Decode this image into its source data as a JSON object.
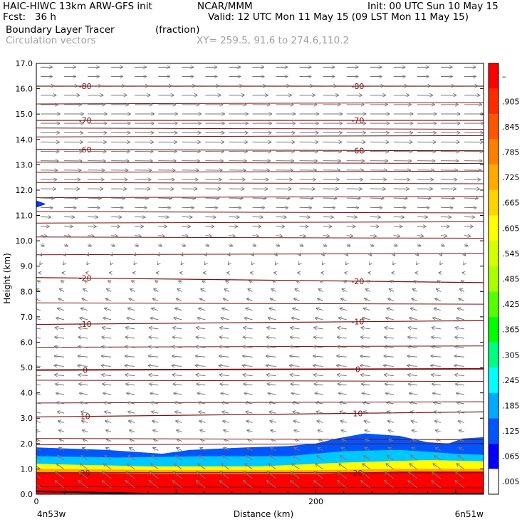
{
  "header": {
    "line1_left": "HAIC-HIWC 13km ARW-GFS init",
    "line1_mid": "NCAR/MMM",
    "line1_right": "Init: 00 UTC Sun 10 May 15",
    "line2_left": "Fcst:   36 h",
    "line2_right": "Valid: 12 UTC Mon 11 May 15 (09 LST Mon 11 May 15)",
    "line3_left": "Boundary Layer Tracer",
    "line3_mid": "(fraction)",
    "line4_left": "Circulation vectors",
    "line4_mid": "XY= 259.5, 91.6 to 274.6,110.2"
  },
  "chart_data": {
    "type": "heatmap",
    "title": "Boundary Layer Tracer",
    "units": "(fraction)",
    "xlabel": "Distance (km)",
    "ylabel": "Height (km)",
    "xlim": [
      0,
      320
    ],
    "ylim": [
      0,
      17
    ],
    "x_ticks": [
      {
        "value": 0,
        "label": "0"
      },
      {
        "value": 200,
        "label": "200"
      }
    ],
    "x_end_labels": {
      "left": "4n53w",
      "right": "6n51w"
    },
    "y_ticks": [
      "0.0",
      "1.0",
      "2.0",
      "3.0",
      "4.0",
      "5.0",
      "6.0",
      "7.0",
      "8.0",
      "9.0",
      "10.0",
      "11.0",
      "12.0",
      "13.0",
      "14.0",
      "15.0",
      "16.0",
      "17.0"
    ],
    "colorbar": {
      "labels": [
        "–",
        ".905",
        ".845",
        ".785",
        ".725",
        ".665",
        ".605",
        ".545",
        ".485",
        ".425",
        ".365",
        ".305",
        ".245",
        ".185",
        ".125",
        ".065",
        ".005"
      ],
      "colors": [
        "#ff0000",
        "#ff2a00",
        "#ff5500",
        "#ff7f00",
        "#ffaa00",
        "#ffd400",
        "#ffff00",
        "#d4ff00",
        "#aaff00",
        "#55ff00",
        "#00ff00",
        "#00ff80",
        "#00ffff",
        "#00aaff",
        "#0055ff",
        "#0000ff",
        "#ffffff"
      ]
    },
    "tracer_layers": [
      {
        "level": 0.005,
        "color": "#0055ff",
        "top_km": [
          [
            0,
            1.85
          ],
          [
            50,
            1.75
          ],
          [
            90,
            1.6
          ],
          [
            110,
            1.75
          ],
          [
            150,
            1.85
          ],
          [
            180,
            1.9
          ],
          [
            200,
            2.0
          ],
          [
            215,
            2.2
          ],
          [
            235,
            2.4
          ],
          [
            260,
            2.3
          ],
          [
            280,
            2.05
          ],
          [
            295,
            2.0
          ],
          [
            305,
            2.2
          ],
          [
            320,
            2.25
          ]
        ]
      },
      {
        "level": 0.185,
        "color": "#00c8ff",
        "top_km": [
          [
            0,
            1.5
          ],
          [
            60,
            1.45
          ],
          [
            120,
            1.5
          ],
          [
            180,
            1.5
          ],
          [
            220,
            1.7
          ],
          [
            260,
            1.75
          ],
          [
            300,
            1.6
          ],
          [
            320,
            1.55
          ]
        ]
      },
      {
        "level": 0.425,
        "color": "#ffff00",
        "top_km": [
          [
            0,
            1.2
          ],
          [
            80,
            1.1
          ],
          [
            160,
            1.1
          ],
          [
            220,
            1.25
          ],
          [
            280,
            1.35
          ],
          [
            320,
            1.3
          ]
        ]
      },
      {
        "level": 0.665,
        "color": "#ffaa00",
        "top_km": [
          [
            0,
            1.0
          ],
          [
            100,
            0.95
          ],
          [
            200,
            0.95
          ],
          [
            260,
            1.0
          ],
          [
            320,
            1.0
          ]
        ]
      },
      {
        "level": 0.905,
        "color": "#ff0000",
        "top_km": [
          [
            0,
            0.85
          ],
          [
            100,
            0.8
          ],
          [
            200,
            0.8
          ],
          [
            260,
            0.9
          ],
          [
            320,
            0.9
          ]
        ]
      }
    ],
    "temperature_contours": [
      {
        "value": 20,
        "label": "20",
        "height_km": [
          [
            0,
            0.85
          ],
          [
            320,
            0.85
          ]
        ]
      },
      {
        "value": 10,
        "label": "10",
        "height_km": [
          [
            0,
            3.05
          ],
          [
            320,
            3.25
          ]
        ]
      },
      {
        "value": 0,
        "label": "0",
        "height_km": [
          [
            0,
            4.9
          ],
          [
            320,
            4.95
          ]
        ]
      },
      {
        "value": -10,
        "label": "-10",
        "height_km": [
          [
            0,
            6.7
          ],
          [
            320,
            6.85
          ]
        ]
      },
      {
        "value": -20,
        "label": "-20",
        "height_km": [
          [
            0,
            8.55
          ],
          [
            320,
            8.35
          ]
        ]
      },
      {
        "value": -60,
        "label": "-60",
        "height_km": [
          [
            0,
            13.6
          ],
          [
            320,
            13.55
          ]
        ]
      },
      {
        "value": -70,
        "label": "-70",
        "height_km": [
          [
            0,
            14.75
          ],
          [
            320,
            14.75
          ]
        ]
      },
      {
        "value": -80,
        "label": "-80",
        "height_km": [
          [
            0,
            16.1
          ],
          [
            320,
            16.1
          ]
        ]
      }
    ],
    "extra_contours_km": [
      0.3,
      1.95,
      2.2,
      3.6,
      4.5,
      5.8,
      7.55,
      9.45,
      10.15,
      10.7,
      11.15,
      11.7,
      12.3,
      12.7,
      13.1,
      14.1,
      14.45,
      15.4
    ],
    "tracer_marker_height_km": 11.45,
    "wind_profile": [
      {
        "z": 0.5,
        "u": -2.0,
        "w": 1.6
      },
      {
        "z": 2.0,
        "u": -1.0,
        "w": 0.4
      },
      {
        "z": 3.5,
        "u": -1.6,
        "w": 0.3
      },
      {
        "z": 5.0,
        "u": -2.2,
        "w": 0.2
      },
      {
        "z": 6.5,
        "u": -2.0,
        "w": 0.3
      },
      {
        "z": 8.0,
        "u": -1.0,
        "w": 0.6
      },
      {
        "z": 9.3,
        "u": 0.0,
        "w": -0.4
      },
      {
        "z": 10.5,
        "u": 1.8,
        "w": -0.1
      },
      {
        "z": 12.0,
        "u": 3.3,
        "w": -0.05
      },
      {
        "z": 13.5,
        "u": 4.0,
        "w": -0.05
      },
      {
        "z": 15.0,
        "u": 4.2,
        "w": 0.0
      },
      {
        "z": 16.5,
        "u": 2.5,
        "w": 0.0
      }
    ]
  }
}
